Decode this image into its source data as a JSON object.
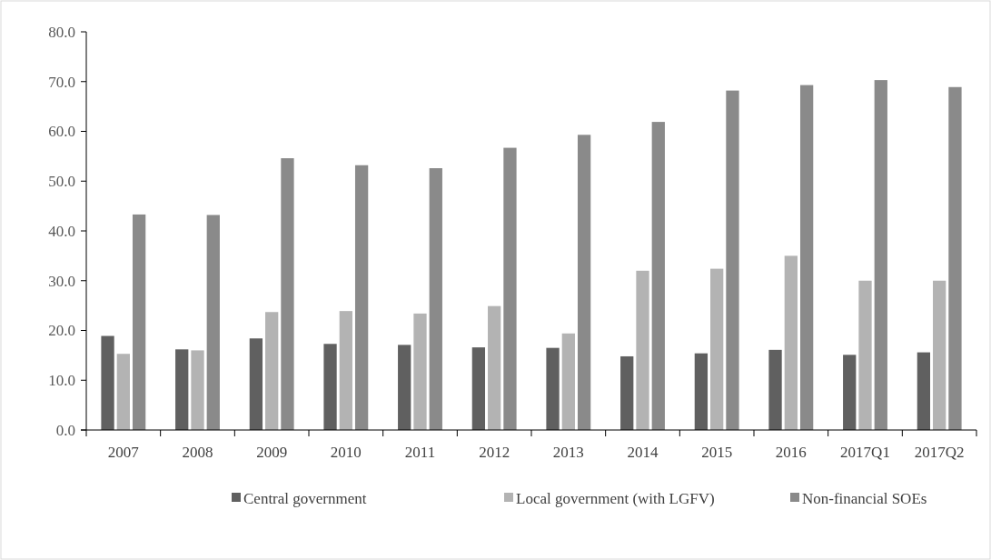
{
  "chart_data": {
    "type": "bar",
    "categories": [
      "2007",
      "2008",
      "2009",
      "2010",
      "2011",
      "2012",
      "2013",
      "2014",
      "2015",
      "2016",
      "2017Q1",
      "2017Q2"
    ],
    "series": [
      {
        "name": "Central government",
        "color": "#606060",
        "values": [
          18.9,
          16.2,
          18.4,
          17.3,
          17.1,
          16.6,
          16.5,
          14.8,
          15.4,
          16.1,
          15.1,
          15.6
        ]
      },
      {
        "name": "Local government (with LGFV)",
        "color": "#b3b3b3",
        "values": [
          15.3,
          16.0,
          23.7,
          23.9,
          23.4,
          24.9,
          19.4,
          32.0,
          32.4,
          35.0,
          30.0,
          30.0
        ]
      },
      {
        "name": "Non-financial SOEs",
        "color": "#8a8a8a",
        "values": [
          43.3,
          43.2,
          54.6,
          53.2,
          52.6,
          56.7,
          59.3,
          61.9,
          68.2,
          69.3,
          70.3,
          68.9
        ]
      }
    ],
    "ylim": [
      0,
      80
    ],
    "yticks": [
      {
        "value": 0,
        "label": "0.0"
      },
      {
        "value": 10,
        "label": "10.0"
      },
      {
        "value": 20,
        "label": "20.0"
      },
      {
        "value": 30,
        "label": "30.0"
      },
      {
        "value": 40,
        "label": "40.0"
      },
      {
        "value": 50,
        "label": "50.0"
      },
      {
        "value": 60,
        "label": "60.0"
      },
      {
        "value": 70,
        "label": "70.0"
      },
      {
        "value": 80,
        "label": "80.0"
      }
    ],
    "grid": false,
    "legend": "bottom"
  }
}
